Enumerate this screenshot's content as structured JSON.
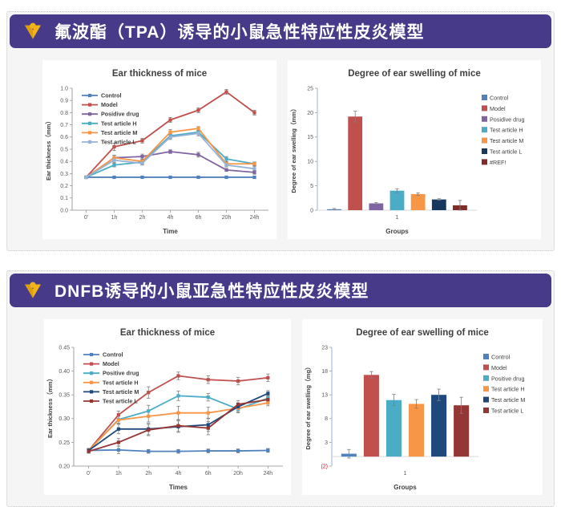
{
  "theme": {
    "banner_bg": "#473a88",
    "banner_text": "#ffffff",
    "logo_color": "#f0b41a",
    "panel_bg": "#f5f5f5",
    "panel_border": "#c9c9c9",
    "card_bg": "#ffffff",
    "negative_tick_red": "#ff0000"
  },
  "icons": {
    "banner_logo": "v-chevron-dot-logo"
  },
  "sections": [
    {
      "banner_title": "氟波酯（TPA）诱导的小鼠急性特应性皮炎模型"
    },
    {
      "banner_title": "DNFB诱导的小鼠亚急性特应性皮炎模型"
    }
  ],
  "chart_data": [
    {
      "type": "line",
      "title": "Ear thickness of mice",
      "xlabel": "Time",
      "ylabel": "Ear thickness（mm）",
      "categories": [
        "0'",
        "1h",
        "2h",
        "4h",
        "6h",
        "20h",
        "24h"
      ],
      "ylim": [
        0,
        1.0
      ],
      "ytick_step": 0.1,
      "ydecimals": 1,
      "grid": false,
      "legend_position": "inside-top-left",
      "series": [
        {
          "name": "Control",
          "color": "#4f81bd",
          "values": [
            0.27,
            0.27,
            0.27,
            0.27,
            0.27,
            0.27,
            0.27
          ],
          "errors": [
            0.005,
            0.008,
            0.008,
            0.008,
            0.008,
            0.008,
            0.008
          ]
        },
        {
          "name": "Model",
          "color": "#c0504d",
          "values": [
            0.27,
            0.52,
            0.57,
            0.74,
            0.82,
            0.97,
            0.8
          ],
          "errors": [
            0.005,
            0.03,
            0.02,
            0.02,
            0.02,
            0.02,
            0.02
          ]
        },
        {
          "name": "Posidive drug",
          "color": "#8064a2",
          "values": [
            0.27,
            0.43,
            0.44,
            0.48,
            0.455,
            0.33,
            0.31
          ],
          "errors": [
            0.005,
            0.02,
            0.02,
            0.015,
            0.02,
            0.012,
            0.015
          ]
        },
        {
          "name": "Test article H",
          "color": "#4bacc6",
          "values": [
            0.27,
            0.37,
            0.395,
            0.61,
            0.64,
            0.42,
            0.38
          ],
          "errors": [
            0.005,
            0.015,
            0.02,
            0.02,
            0.015,
            0.02,
            0.015
          ]
        },
        {
          "name": "Test article M",
          "color": "#f79646",
          "values": [
            0.27,
            0.43,
            0.4,
            0.64,
            0.67,
            0.38,
            0.38
          ],
          "errors": [
            0.005,
            0.02,
            0.015,
            0.02,
            0.015,
            0.015,
            0.015
          ]
        },
        {
          "name": "Test article L",
          "color": "#95b3d7",
          "values": [
            0.27,
            0.41,
            0.385,
            0.6,
            0.63,
            0.37,
            0.34
          ],
          "errors": [
            0.005,
            0.02,
            0.015,
            0.02,
            0.02,
            0.015,
            0.02
          ]
        }
      ]
    },
    {
      "type": "bar",
      "title": "Degree of ear swelling of mice",
      "xlabel": "Groups",
      "ylabel": "Degree of ear swelling（mm）",
      "categories": [
        "1"
      ],
      "ylim": [
        0,
        25
      ],
      "ytick_step": 5,
      "ydecimals": 0,
      "grid": false,
      "legend_position": "right",
      "series": [
        {
          "name": "Control",
          "color": "#4f81bd",
          "values": [
            0.2
          ],
          "errors": [
            0.15
          ]
        },
        {
          "name": "Model",
          "color": "#c0504d",
          "values": [
            19.2
          ],
          "errors": [
            1.1
          ]
        },
        {
          "name": "Posidive drug",
          "color": "#8064a2",
          "values": [
            1.4
          ],
          "errors": [
            0.15
          ]
        },
        {
          "name": "Test article H",
          "color": "#4bacc6",
          "values": [
            4.0
          ],
          "errors": [
            0.4
          ]
        },
        {
          "name": "Test article M",
          "color": "#f79646",
          "values": [
            3.3
          ],
          "errors": [
            0.25
          ]
        },
        {
          "name": "Test article L",
          "color": "#17375e",
          "values": [
            2.2
          ],
          "errors": [
            0.15
          ]
        },
        {
          "name": "#REF!",
          "color": "#7f2b27",
          "values": [
            1.0
          ],
          "errors": [
            1.0
          ]
        }
      ]
    },
    {
      "type": "line",
      "title": "Ear thickness of mice",
      "xlabel": "Times",
      "ylabel": "Ear thickness（mm）",
      "categories": [
        "0'",
        "1h",
        "2h",
        "4h",
        "6h",
        "20h",
        "24h"
      ],
      "ylim": [
        0.2,
        0.45
      ],
      "ytick_step": 0.05,
      "ydecimals": 2,
      "grid": false,
      "legend_position": "inside-top-left",
      "series": [
        {
          "name": "Control",
          "color": "#4f81bd",
          "values": [
            0.233,
            0.234,
            0.231,
            0.231,
            0.232,
            0.232,
            0.233
          ],
          "errors": [
            0.004,
            0.008,
            0.004,
            0.004,
            0.004,
            0.004,
            0.004
          ]
        },
        {
          "name": "Model",
          "color": "#c0504d",
          "values": [
            0.233,
            0.308,
            0.355,
            0.39,
            0.382,
            0.379,
            0.386
          ],
          "errors": [
            0.004,
            0.008,
            0.012,
            0.008,
            0.008,
            0.008,
            0.008
          ]
        },
        {
          "name": "Positive drug",
          "color": "#4bacc6",
          "values": [
            0.233,
            0.298,
            0.316,
            0.348,
            0.345,
            0.32,
            0.343
          ],
          "errors": [
            0.004,
            0.008,
            0.012,
            0.01,
            0.008,
            0.008,
            0.006
          ]
        },
        {
          "name": "Test article H",
          "color": "#f79646",
          "values": [
            0.233,
            0.297,
            0.305,
            0.312,
            0.312,
            0.322,
            0.333
          ],
          "errors": [
            0.004,
            0.008,
            0.012,
            0.014,
            0.012,
            0.008,
            0.006
          ]
        },
        {
          "name": "Test article M",
          "color": "#1f497d",
          "values": [
            0.233,
            0.278,
            0.278,
            0.283,
            0.287,
            0.325,
            0.353
          ],
          "errors": [
            0.004,
            0.01,
            0.012,
            0.012,
            0.014,
            0.008,
            0.006
          ]
        },
        {
          "name": "Test article L",
          "color": "#943634",
          "values": [
            0.231,
            0.25,
            0.276,
            0.285,
            0.28,
            0.33,
            0.34
          ],
          "errors": [
            0.004,
            0.008,
            0.012,
            0.012,
            0.014,
            0.008,
            0.006
          ]
        }
      ]
    },
    {
      "type": "bar",
      "title": "Degree of ear swelling of mice",
      "xlabel": "Groups",
      "ylabel": "Degree of ear swelling（mg）",
      "categories": [
        "1"
      ],
      "ylim": [
        -2,
        23
      ],
      "ytick_step": 5,
      "ydecimals": 0,
      "neg_paren": true,
      "negative_tick_color": "#ff0000",
      "grid": false,
      "legend_position": "right",
      "series": [
        {
          "name": "Control",
          "color": "#4f81bd",
          "values": [
            0.6
          ],
          "errors": [
            0.9
          ]
        },
        {
          "name": "Model",
          "color": "#c0504d",
          "values": [
            17.2
          ],
          "errors": [
            0.7
          ]
        },
        {
          "name": "Positive drug",
          "color": "#4bacc6",
          "values": [
            11.9
          ],
          "errors": [
            1.2
          ]
        },
        {
          "name": "Test article H",
          "color": "#f79646",
          "values": [
            11.1
          ],
          "errors": [
            0.9
          ]
        },
        {
          "name": "Test article M",
          "color": "#1f497d",
          "values": [
            13.0
          ],
          "errors": [
            1.2
          ]
        },
        {
          "name": "Test article L",
          "color": "#943634",
          "values": [
            10.8
          ],
          "errors": [
            1.7
          ]
        }
      ]
    }
  ]
}
